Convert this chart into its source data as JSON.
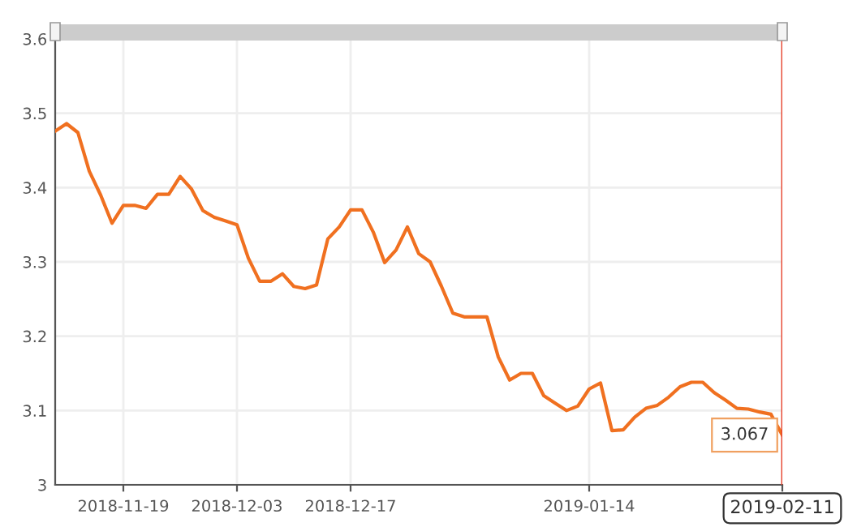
{
  "chart_data": {
    "type": "line",
    "categories": [
      null,
      null,
      null,
      null,
      null,
      null,
      "2018-11-19",
      null,
      null,
      null,
      null,
      null,
      null,
      null,
      null,
      null,
      "2018-12-03",
      null,
      null,
      null,
      null,
      null,
      null,
      null,
      null,
      null,
      "2018-12-17",
      null,
      null,
      null,
      null,
      null,
      null,
      null,
      null,
      null,
      null,
      null,
      null,
      null,
      null,
      null,
      null,
      null,
      null,
      null,
      null,
      "2019-01-14",
      null,
      null,
      null,
      null,
      null,
      null,
      null,
      null,
      null,
      null,
      null,
      null,
      null,
      null,
      null,
      null,
      "2019-02-11"
    ],
    "series": [
      {
        "color": "#f07020",
        "values": [
          3.476,
          3.486,
          3.474,
          3.422,
          3.39,
          3.352,
          3.376,
          3.376,
          3.372,
          3.391,
          3.391,
          3.415,
          3.398,
          3.369,
          3.36,
          3.355,
          3.35,
          3.305,
          3.274,
          3.274,
          3.284,
          3.267,
          3.264,
          3.269,
          3.331,
          3.347,
          3.37,
          3.37,
          3.34,
          3.299,
          3.316,
          3.347,
          3.311,
          3.3,
          3.267,
          3.231,
          3.226,
          3.226,
          3.226,
          3.172,
          3.141,
          3.15,
          3.15,
          3.12,
          3.11,
          3.1,
          3.106,
          3.129,
          3.137,
          3.073,
          3.074,
          3.091,
          3.103,
          3.107,
          3.118,
          3.132,
          3.138,
          3.138,
          3.124,
          3.114,
          3.103,
          3.102,
          3.098,
          3.095,
          3.067
        ]
      }
    ],
    "ylim": [
      3,
      3.6
    ],
    "yticks": [
      3,
      3.1,
      3.2,
      3.3,
      3.4,
      3.5,
      3.6
    ],
    "grid": true,
    "marker": "none",
    "line_style": "solid",
    "ref_lines": [
      {
        "axis": "x",
        "value": "2019-02-11",
        "color": "#e8432c"
      }
    ],
    "annotations": [
      {
        "text": "3.067",
        "x": "2019-02-11",
        "y": 3.067
      }
    ]
  }
}
